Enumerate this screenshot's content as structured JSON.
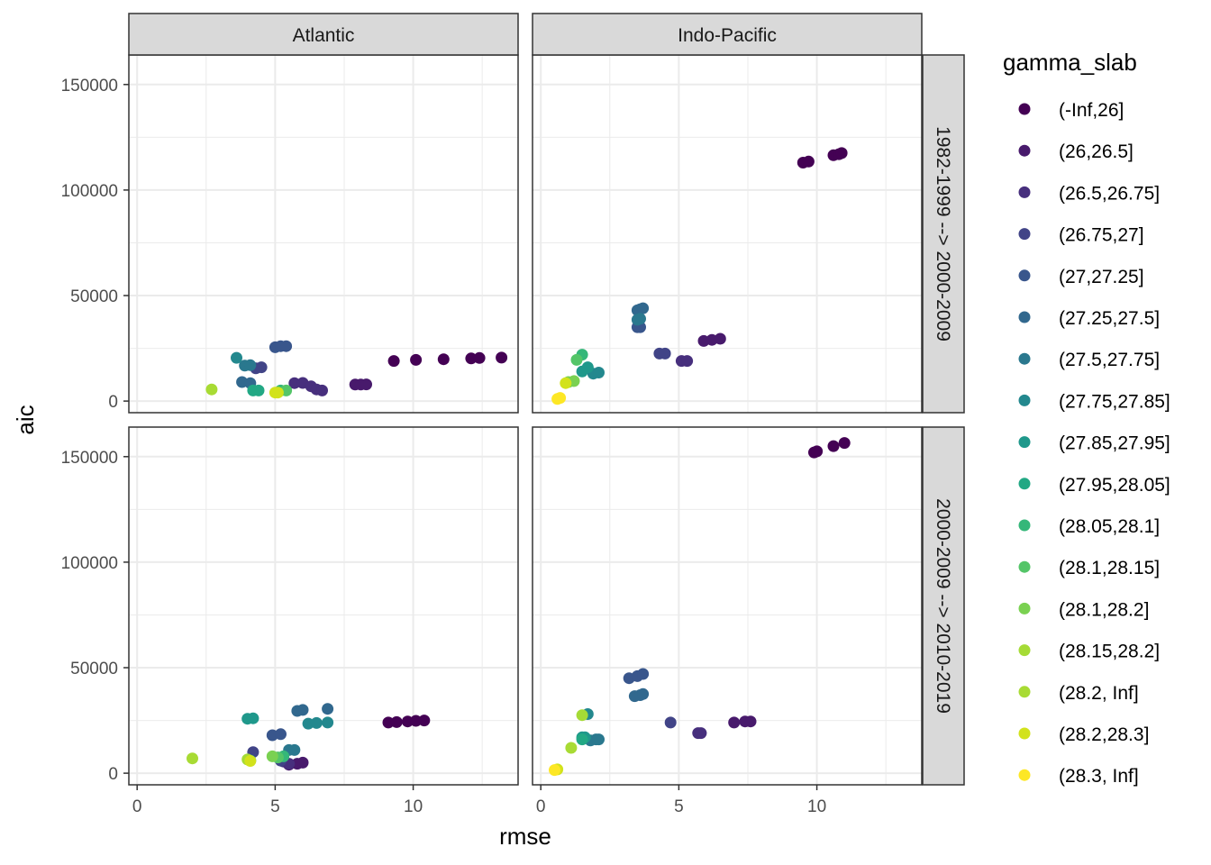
{
  "chart_data": {
    "type": "scatter",
    "facet_layout": "grid",
    "column_facets": [
      "Atlantic",
      "Indo-Pacific"
    ],
    "row_facets": [
      "1982-1999 --> 2000-2009",
      "2000-2009 --> 2010-2019"
    ],
    "xlabel": "rmse",
    "ylabel": "aic",
    "xlim": [
      -0.3,
      13.8
    ],
    "ylim": [
      -5500,
      164000
    ],
    "xticks": [
      0,
      5,
      10
    ],
    "yticks": [
      0,
      50000,
      100000,
      150000
    ],
    "ytick_labels": [
      "0",
      "50000",
      "100000",
      "150000"
    ],
    "xtick_labels": [
      "0",
      "5",
      "10"
    ],
    "grid": true,
    "legend": {
      "title": "gamma_slab",
      "position": "right",
      "entries": [
        "(-Inf,26]",
        "(26,26.5]",
        "(26.5,26.75]",
        "(26.75,27]",
        "(27,27.25]",
        "(27.25,27.5]",
        "(27.5,27.75]",
        "(27.75,27.85]",
        "(27.85,27.95]",
        "(27.95,28.05]",
        "(28.05,28.1]",
        "(28.1,28.15]",
        "(28.1,28.2]",
        "(28.15,28.2]",
        "(28.2, Inf]",
        "(28.2,28.3]",
        "(28.3, Inf]"
      ],
      "colors": [
        "#440154",
        "#481A6C",
        "#472F7D",
        "#414487",
        "#39568C",
        "#31688E",
        "#2A788E",
        "#23888E",
        "#1F988B",
        "#22A884",
        "#35B779",
        "#54C568",
        "#7AD151",
        "#A5DB36",
        "#A8DB34",
        "#D2E21B",
        "#FDE725"
      ]
    },
    "series": [
      {
        "row": 0,
        "col": 0,
        "name": "Atlantic 1982-1999 --> 2000-2009",
        "points": [
          [
            9.3,
            19000,
            0
          ],
          [
            10.1,
            19500,
            0
          ],
          [
            11.1,
            19800,
            0
          ],
          [
            12.1,
            20200,
            0
          ],
          [
            12.4,
            20400,
            0
          ],
          [
            13.2,
            20600,
            0
          ],
          [
            7.9,
            7800,
            1
          ],
          [
            8.1,
            7800,
            1
          ],
          [
            8.3,
            7900,
            1
          ],
          [
            5.7,
            8500,
            2
          ],
          [
            6.0,
            8600,
            2
          ],
          [
            6.3,
            7000,
            2
          ],
          [
            6.5,
            5500,
            2
          ],
          [
            6.7,
            5000,
            2
          ],
          [
            4.3,
            15500,
            3
          ],
          [
            4.5,
            16000,
            3
          ],
          [
            5.0,
            25500,
            4
          ],
          [
            5.2,
            26000,
            4
          ],
          [
            5.4,
            26000,
            4
          ],
          [
            3.8,
            9000,
            5
          ],
          [
            4.1,
            8500,
            5
          ],
          [
            3.9,
            16800,
            6
          ],
          [
            4.1,
            17000,
            6
          ],
          [
            3.6,
            20500,
            7
          ],
          [
            4.2,
            5000,
            9
          ],
          [
            4.4,
            5000,
            9
          ],
          [
            5.2,
            5000,
            10
          ],
          [
            5.4,
            5000,
            11
          ],
          [
            2.7,
            5500,
            14
          ],
          [
            5.0,
            4000,
            15
          ],
          [
            5.1,
            4000,
            15
          ]
        ]
      },
      {
        "row": 0,
        "col": 1,
        "name": "Indo-Pacific 1982-1999 --> 2000-2009",
        "points": [
          [
            9.5,
            113000,
            0
          ],
          [
            9.7,
            113500,
            0
          ],
          [
            10.6,
            116500,
            0
          ],
          [
            10.8,
            117000,
            0
          ],
          [
            10.9,
            117500,
            0
          ],
          [
            5.9,
            28500,
            1
          ],
          [
            6.2,
            29000,
            1
          ],
          [
            6.5,
            29500,
            1
          ],
          [
            5.1,
            19000,
            2
          ],
          [
            5.3,
            19000,
            2
          ],
          [
            4.3,
            22500,
            3
          ],
          [
            4.5,
            22500,
            3
          ],
          [
            3.5,
            35000,
            4
          ],
          [
            3.6,
            35000,
            4
          ],
          [
            3.5,
            43000,
            5
          ],
          [
            3.6,
            43500,
            5
          ],
          [
            3.7,
            44000,
            5
          ],
          [
            3.5,
            38500,
            6
          ],
          [
            3.6,
            39000,
            6
          ],
          [
            1.7,
            15500,
            7
          ],
          [
            1.9,
            13000,
            7
          ],
          [
            2.1,
            13500,
            7
          ],
          [
            1.5,
            14000,
            8
          ],
          [
            1.7,
            16000,
            8
          ],
          [
            1.5,
            22000,
            10
          ],
          [
            1.3,
            19500,
            11
          ],
          [
            1.0,
            9000,
            12
          ],
          [
            1.2,
            9500,
            12
          ],
          [
            0.9,
            8500,
            15
          ],
          [
            0.7,
            1500,
            16
          ],
          [
            0.6,
            1000,
            16
          ]
        ]
      },
      {
        "row": 1,
        "col": 0,
        "name": "Atlantic 2000-2009 --> 2010-2019",
        "points": [
          [
            9.1,
            24000,
            0
          ],
          [
            9.4,
            24200,
            0
          ],
          [
            9.8,
            24500,
            0
          ],
          [
            10.1,
            24800,
            0
          ],
          [
            10.4,
            25000,
            0
          ],
          [
            5.5,
            4000,
            1
          ],
          [
            5.8,
            4500,
            1
          ],
          [
            6.0,
            5000,
            1
          ],
          [
            5.3,
            5500,
            2
          ],
          [
            5.5,
            4500,
            2
          ],
          [
            4.2,
            10000,
            3
          ],
          [
            5.2,
            6000,
            3
          ],
          [
            4.9,
            18000,
            4
          ],
          [
            5.2,
            18500,
            4
          ],
          [
            5.8,
            29500,
            5
          ],
          [
            6.0,
            30000,
            5
          ],
          [
            6.9,
            30500,
            5
          ],
          [
            5.5,
            11000,
            6
          ],
          [
            5.7,
            11000,
            6
          ],
          [
            6.2,
            23500,
            7
          ],
          [
            6.5,
            23800,
            7
          ],
          [
            6.9,
            24000,
            7
          ],
          [
            4.0,
            25800,
            8
          ],
          [
            4.2,
            26000,
            8
          ],
          [
            4.1,
            6000,
            9
          ],
          [
            5.3,
            8000,
            10
          ],
          [
            5.1,
            7500,
            11
          ],
          [
            4.9,
            8000,
            12
          ],
          [
            4.0,
            6500,
            13
          ],
          [
            2.0,
            7000,
            14
          ],
          [
            4.1,
            5800,
            15
          ]
        ]
      },
      {
        "row": 1,
        "col": 1,
        "name": "Indo-Pacific 2000-2009 --> 2010-2019",
        "points": [
          [
            9.9,
            152000,
            0
          ],
          [
            10.0,
            152500,
            0
          ],
          [
            10.6,
            155000,
            0
          ],
          [
            11.0,
            156500,
            0
          ],
          [
            7.0,
            24000,
            1
          ],
          [
            7.4,
            24500,
            1
          ],
          [
            7.6,
            24500,
            1
          ],
          [
            5.7,
            19000,
            2
          ],
          [
            5.8,
            19000,
            2
          ],
          [
            4.7,
            24000,
            3
          ],
          [
            3.2,
            45000,
            4
          ],
          [
            3.5,
            46000,
            4
          ],
          [
            3.7,
            47000,
            4
          ],
          [
            3.4,
            36500,
            5
          ],
          [
            3.6,
            37000,
            5
          ],
          [
            3.7,
            37500,
            5
          ],
          [
            1.8,
            15500,
            6
          ],
          [
            2.0,
            16000,
            6
          ],
          [
            2.1,
            16000,
            6
          ],
          [
            1.7,
            28000,
            7
          ],
          [
            1.5,
            17000,
            8
          ],
          [
            1.6,
            17000,
            8
          ],
          [
            1.5,
            16000,
            9
          ],
          [
            1.5,
            27500,
            13
          ],
          [
            1.1,
            12000,
            14
          ],
          [
            0.6,
            1800,
            15
          ],
          [
            0.5,
            1500,
            16
          ]
        ]
      }
    ]
  }
}
